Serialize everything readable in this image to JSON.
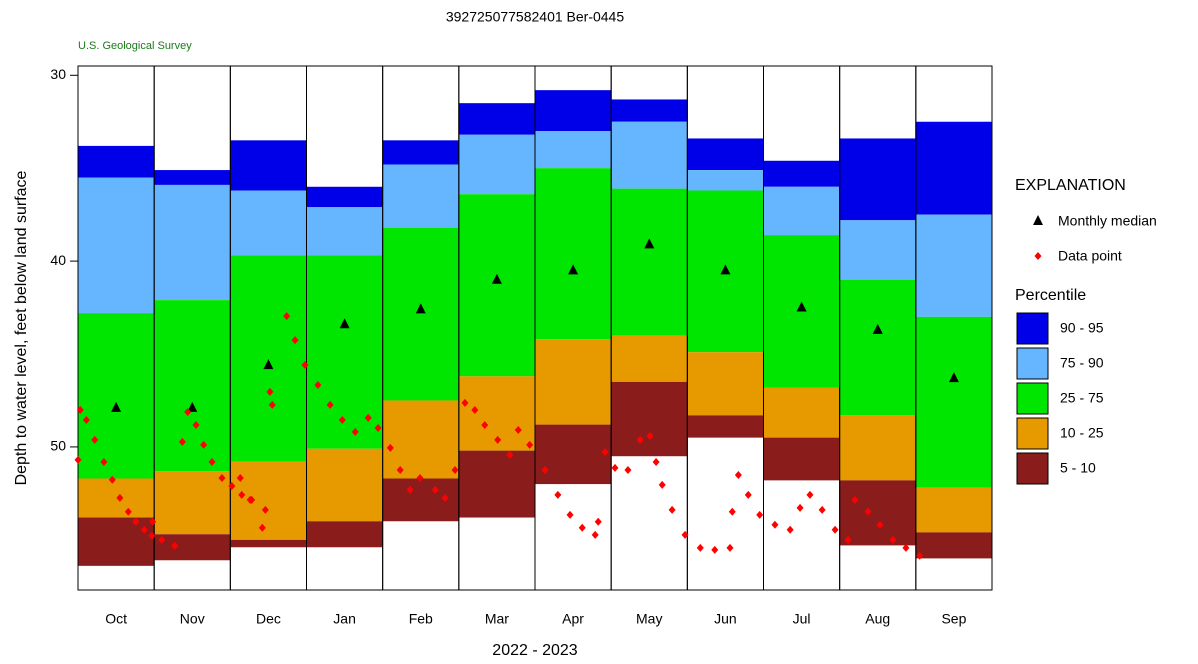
{
  "chart_data": {
    "type": "percentile-bar",
    "title": "392725077582401   Ber-0445",
    "subtitle": "U.S. Geological Survey",
    "x_label": "2022 - 2023",
    "y_label": "Depth to water level, feet below land surface",
    "categories": [
      "Oct",
      "Nov",
      "Dec",
      "Jan",
      "Feb",
      "Mar",
      "Apr",
      "May",
      "Jun",
      "Jul",
      "Aug",
      "Sep"
    ],
    "ylim": [
      29.5,
      57.7
    ],
    "y_inverted": true,
    "yticks": [
      30,
      40,
      50
    ],
    "legend_title": "EXPLANATION",
    "percentile_title": "Percentile",
    "bands": [
      {
        "name": "90 - 95",
        "color": "#0000e8",
        "from": [
          33.8,
          35.1,
          33.5,
          36.0,
          33.5,
          31.5,
          30.8,
          31.3,
          33.4,
          34.6,
          33.4,
          32.5
        ],
        "to": [
          35.5,
          35.9,
          36.2,
          37.1,
          34.8,
          33.2,
          33.0,
          32.5,
          35.1,
          36.0,
          37.8,
          37.5
        ]
      },
      {
        "name": "75 - 90",
        "color": "#66b5ff",
        "from": [
          35.5,
          35.9,
          36.2,
          37.1,
          34.8,
          33.2,
          33.0,
          32.5,
          35.1,
          36.0,
          37.8,
          37.5
        ],
        "to": [
          42.8,
          42.1,
          39.7,
          39.7,
          38.2,
          36.4,
          35.0,
          36.1,
          36.2,
          38.6,
          41.0,
          43.0
        ]
      },
      {
        "name": "25 - 75",
        "color": "#00e600",
        "from": [
          42.8,
          42.1,
          39.7,
          39.7,
          38.2,
          36.4,
          35.0,
          36.1,
          36.2,
          38.6,
          41.0,
          43.0
        ],
        "to": [
          51.7,
          51.3,
          50.8,
          50.1,
          47.5,
          46.2,
          44.2,
          44.0,
          44.9,
          46.8,
          48.3,
          52.2
        ]
      },
      {
        "name": "10 - 25",
        "color": "#e69a00",
        "from": [
          51.7,
          51.3,
          50.8,
          50.1,
          47.5,
          46.2,
          44.2,
          44.0,
          44.9,
          46.8,
          48.3,
          52.2
        ],
        "to": [
          53.8,
          54.7,
          55.0,
          54.0,
          51.7,
          50.2,
          48.8,
          46.5,
          48.3,
          49.5,
          51.8,
          54.6
        ]
      },
      {
        "name": "5 - 10",
        "color": "#8b1c1c",
        "from": [
          53.8,
          54.7,
          55.0,
          54.0,
          51.7,
          50.2,
          48.8,
          46.5,
          48.3,
          49.5,
          51.8,
          54.6
        ],
        "to": [
          56.4,
          56.1,
          55.4,
          55.4,
          54.0,
          53.8,
          52.0,
          50.5,
          49.5,
          51.8,
          55.3,
          56.0
        ]
      }
    ],
    "median": {
      "name": "Monthly median",
      "color": "#000000",
      "values": [
        47.9,
        47.9,
        45.6,
        43.4,
        42.6,
        41.0,
        40.5,
        39.1,
        40.5,
        42.5,
        43.7,
        46.3
      ]
    },
    "data_points": {
      "name": "Data point",
      "color": "#ff0000",
      "xlim": [
        0,
        12
      ],
      "x": [
        0.0,
        0.03,
        0.11,
        0.22,
        0.34,
        0.45,
        0.55,
        0.66,
        0.76,
        0.87,
        0.97,
        0.98,
        1.1,
        1.27,
        1.37,
        1.44,
        1.55,
        1.65,
        1.76,
        1.89,
        2.02,
        2.15,
        2.28,
        2.46,
        2.13,
        2.26,
        2.42,
        2.52,
        2.55,
        2.74,
        2.85,
        2.98,
        3.15,
        3.31,
        3.47,
        3.64,
        3.81,
        3.94,
        4.1,
        4.23,
        4.36,
        4.49,
        4.69,
        4.82,
        4.95,
        5.08,
        5.21,
        5.34,
        5.51,
        5.67,
        5.78,
        5.93,
        6.13,
        6.3,
        6.46,
        6.62,
        6.79,
        6.83,
        6.92,
        7.05,
        7.22,
        7.38,
        7.51,
        7.59,
        7.67,
        7.8,
        7.97,
        8.17,
        8.36,
        8.56,
        8.59,
        8.67,
        8.8,
        8.95,
        9.15,
        9.35,
        9.48,
        9.61,
        9.77,
        9.94,
        10.11,
        10.2,
        10.37,
        10.53,
        10.7,
        10.87,
        11.05
      ],
      "values": [
        50.7,
        48.01,
        48.55,
        49.62,
        50.81,
        51.77,
        52.74,
        53.49,
        54.03,
        54.46,
        54.78,
        54.03,
        55.0,
        55.32,
        49.73,
        48.12,
        48.82,
        49.89,
        50.81,
        51.67,
        52.1,
        52.58,
        52.85,
        53.39,
        51.67,
        52.85,
        54.35,
        47.04,
        47.74,
        42.96,
        44.25,
        45.59,
        46.67,
        47.74,
        48.55,
        49.19,
        48.44,
        48.98,
        50.05,
        51.24,
        52.31,
        51.67,
        52.31,
        52.74,
        51.24,
        47.63,
        48.01,
        48.82,
        49.62,
        50.43,
        49.09,
        49.89,
        51.24,
        52.58,
        53.66,
        54.35,
        54.73,
        54.03,
        50.27,
        51.13,
        51.24,
        49.62,
        49.41,
        50.81,
        52.04,
        53.39,
        54.73,
        55.43,
        55.54,
        55.43,
        53.49,
        51.51,
        52.58,
        53.66,
        54.19,
        54.46,
        53.28,
        52.58,
        53.39,
        54.46,
        55.0,
        52.85,
        53.49,
        54.19,
        55.0,
        55.43,
        55.86
      ]
    }
  }
}
